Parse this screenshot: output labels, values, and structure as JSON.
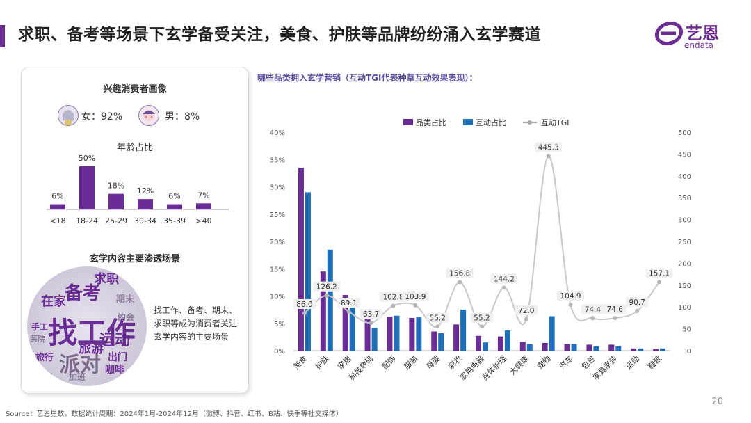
{
  "title": "求职、备考等场景下玄学备受关注，美食、护肤等品牌纷纷涌入玄学赛道",
  "logo": {
    "name": "艺恩",
    "sub": "endata"
  },
  "left_card": {
    "heading": "兴趣消费者画像",
    "female_label": "女：92%",
    "male_label": "男：8%",
    "age_title": "年龄占比",
    "scenes_heading": "玄学内容主要渗透场景",
    "description": "找工作、备考、期末、求职等成为消费者关注玄学内容的主要场景",
    "wordcloud_words": [
      "找工作",
      "备考",
      "求职",
      "运动",
      "派对",
      "旅游",
      "在家",
      "出门",
      "咖啡",
      "手工",
      "旅行",
      "期末",
      "熬夜",
      "医院",
      "约会",
      "加班"
    ]
  },
  "right_heading": "哪些品类拥入玄学营销（互动TGI代表种草互动效果表现）：",
  "footer": "Source：艺恩星数，数据统计周期：2024年1月-2024年12月（微博、抖音、红书、B站、快手等社交媒体）",
  "page_number": "20",
  "colors": {
    "purple": "#6a2c95",
    "blue": "#1f6fb8",
    "line": "#c8c8c8"
  },
  "chart_data": [
    {
      "type": "bar",
      "title": "年龄占比",
      "categories": [
        "<18",
        "18-24",
        "25-29",
        "30-34",
        "35-39",
        ">40"
      ],
      "values": [
        6,
        50,
        18,
        12,
        6,
        7
      ],
      "labels": [
        "6%",
        "50%",
        "18%",
        "12%",
        "6%",
        "7%"
      ],
      "ylim": [
        0,
        50
      ]
    },
    {
      "type": "bar",
      "legend": [
        "品类占比",
        "互动占比",
        "互动TGI"
      ],
      "legend_position": "top",
      "categories": [
        "美食",
        "护肤",
        "家居",
        "科技数码",
        "配饰",
        "服装",
        "母婴",
        "彩妆",
        "家用电器",
        "身体护理",
        "大健康",
        "宠物",
        "汽车",
        "包包",
        "家具家装",
        "运动",
        "鞋靴"
      ],
      "series": [
        {
          "name": "品类占比",
          "axis": "left",
          "values": [
            33.5,
            14.5,
            10.2,
            6.3,
            6.2,
            6.0,
            3.5,
            4.8,
            2.7,
            2.6,
            1.6,
            1.4,
            1.2,
            1.1,
            1.1,
            0.4,
            0.3
          ]
        },
        {
          "name": "互动占比",
          "axis": "left",
          "values": [
            29.0,
            18.5,
            9.1,
            4.2,
            6.4,
            6.1,
            3.2,
            7.5,
            1.5,
            3.7,
            1.2,
            6.3,
            1.2,
            0.8,
            0.8,
            0.4,
            0.4
          ]
        },
        {
          "name": "互动TGI",
          "axis": "right",
          "type": "line",
          "values": [
            86.0,
            126.2,
            89.1,
            63.7,
            102.8,
            103.9,
            55.2,
            156.8,
            55.2,
            144.2,
            72.0,
            445.3,
            104.9,
            74.4,
            74.6,
            90.7,
            157.1
          ],
          "labels": [
            "86.0",
            "126.2",
            "89.1",
            "63.7",
            "102.8",
            "103.9",
            "55.2",
            "156.8",
            "55.2",
            "144.2",
            "72.0",
            "445.3",
            "104.9",
            "74.4",
            "74.6",
            "90.7",
            "157.1"
          ]
        }
      ],
      "ylim": [
        0,
        40
      ],
      "yticks": [
        "0%",
        "5%",
        "10%",
        "15%",
        "20%",
        "25%",
        "30%",
        "35%",
        "40%"
      ],
      "y2lim": [
        0,
        500
      ],
      "y2ticks": [
        "0",
        "50",
        "100",
        "150",
        "200",
        "250",
        "300",
        "350",
        "400",
        "450",
        "500"
      ],
      "grid": false
    }
  ]
}
